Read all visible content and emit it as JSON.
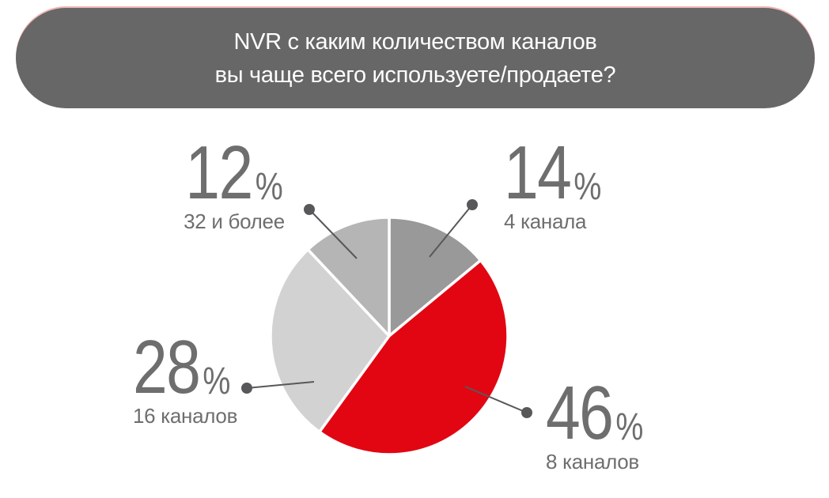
{
  "banner": {
    "title_line1": "NVR с каким количеством каналов",
    "title_line2": "вы чаще всего используете/продаете?",
    "bg_color": "#676767",
    "accent_line_color": "#f2b3b5",
    "text_color": "#ffffff"
  },
  "percent_sign": "%",
  "chart_data": {
    "type": "pie",
    "title": "NVR с каким количеством каналов вы чаще всего используете/продаете?",
    "direction": "clockwise",
    "start_angle_deg": 0,
    "total": 100,
    "segments": [
      {
        "label": "4 канала",
        "value": 14,
        "color": "#999999"
      },
      {
        "label": "8 каналов",
        "value": 46,
        "color": "#e20613"
      },
      {
        "label": "16 каналов",
        "value": 28,
        "color": "#d2d2d2"
      },
      {
        "label": "32 и более",
        "value": 12,
        "color": "#b5b5b5"
      }
    ],
    "slice_border_color": "#ffffff",
    "callout_text_color": "#6e6e6e",
    "leader_line_color": "#58585a",
    "legend_position": "callout-labels"
  }
}
